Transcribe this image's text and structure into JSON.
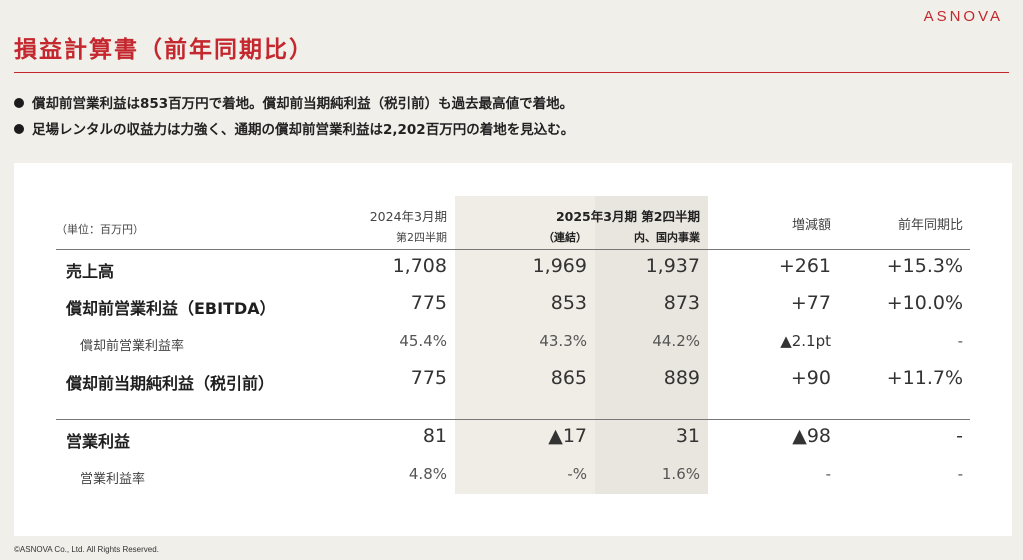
{
  "brand": "ASNOVA",
  "title": "損益計算書（前年同期比）",
  "bullets": [
    "償却前営業利益は853百万円で着地。償却前当期純利益（税引前）も過去最高値で着地。",
    "足場レンタルの収益力は力強く、通期の償却前営業利益は2,202百万円の着地を見込む。"
  ],
  "table": {
    "unit": "（単位：百万円）",
    "headers": {
      "prev_line1": "2024年3月期",
      "prev_line2": "第2四半期",
      "cur_line1": "2025年3月期 第2四半期",
      "cur_consolidated": "（連結）",
      "cur_domestic": "内、国内事業",
      "change": "増減額",
      "yoy": "前年同期比"
    },
    "rows": [
      {
        "label": "売上高",
        "prev": "1,708",
        "cur": "1,969",
        "dom": "1,937",
        "change": "+261",
        "yoy": "+15.3%"
      },
      {
        "label": "償却前営業利益（EBITDA）",
        "prev": "775",
        "cur": "853",
        "dom": "873",
        "change": "+77",
        "yoy": "+10.0%"
      },
      {
        "label": "償却前営業利益率",
        "prev": "45.4%",
        "cur": "43.3%",
        "dom": "44.2%",
        "change": "▲2.1pt",
        "yoy": "-"
      },
      {
        "label": "償却前当期純利益（税引前）",
        "prev": "775",
        "cur": "865",
        "dom": "889",
        "change": "+90",
        "yoy": "+11.7%"
      },
      {
        "label": "営業利益",
        "prev": "81",
        "cur": "▲17",
        "dom": "31",
        "change": "▲98",
        "yoy": "-"
      },
      {
        "label": "営業利益率",
        "prev": "4.8%",
        "cur": "-%",
        "dom": "1.6%",
        "change": "-",
        "yoy": "-"
      }
    ]
  },
  "footer": "©ASNOVA Co., Ltd. All Rights Reserved.",
  "colors": {
    "accent": "#c4272d",
    "background": "#f1efea",
    "panel": "#ffffff",
    "shade": "#f0ece6"
  }
}
